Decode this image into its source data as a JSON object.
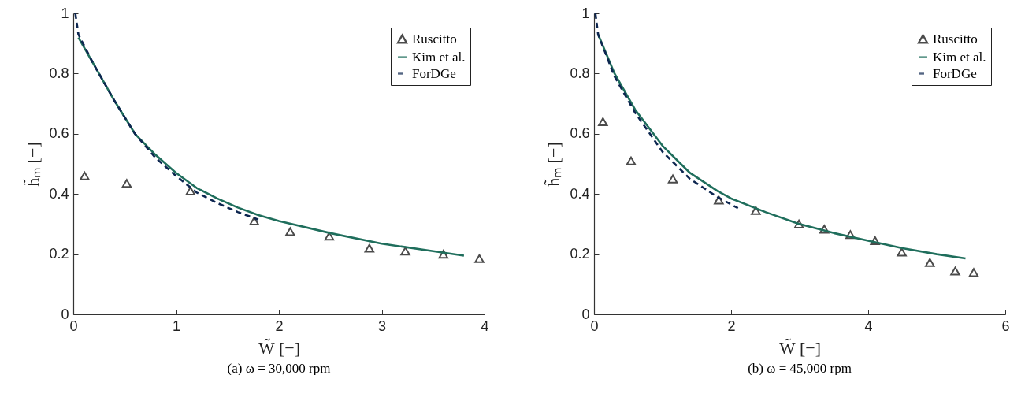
{
  "chart_data": [
    {
      "type": "line",
      "title": "(a)  ω = 30,000 rpm",
      "xlabel": "W̃  [−]",
      "ylabel": "h̃ₘ  [−]",
      "xlim": [
        0,
        4
      ],
      "xticks": [
        0,
        1,
        2,
        3,
        4
      ],
      "ylim": [
        0,
        1
      ],
      "yticks": [
        0,
        0.2,
        0.4,
        0.6,
        0.8,
        1
      ],
      "grid": false,
      "legend": "top right",
      "series": [
        {
          "name": "Ruscitto",
          "type": "scatter",
          "marker": "triangle",
          "color": "#000000",
          "x": [
            0.11,
            0.52,
            1.14,
            1.76,
            2.11,
            2.49,
            2.88,
            3.23,
            3.6,
            3.95
          ],
          "values": [
            0.46,
            0.435,
            0.41,
            0.31,
            0.275,
            0.26,
            0.22,
            0.21,
            0.2,
            0.185
          ]
        },
        {
          "name": "Kim et al.",
          "marker": "none",
          "line_style": "solid",
          "color": "#1f6e5c",
          "x": [
            0.05,
            0.2,
            0.4,
            0.6,
            0.8,
            1.0,
            1.2,
            1.4,
            1.6,
            1.8,
            2.0,
            2.5,
            3.0,
            3.5,
            3.8
          ],
          "values": [
            0.92,
            0.83,
            0.71,
            0.6,
            0.53,
            0.47,
            0.42,
            0.385,
            0.355,
            0.33,
            0.31,
            0.27,
            0.235,
            0.21,
            0.195
          ]
        },
        {
          "name": "ForDGe",
          "marker": "none",
          "line_style": "dashed",
          "color": "#0d2650",
          "x": [
            0.02,
            0.05,
            0.2,
            0.4,
            0.6,
            0.8,
            1.0,
            1.2,
            1.4,
            1.6,
            1.8
          ],
          "values": [
            1.0,
            0.93,
            0.83,
            0.71,
            0.6,
            0.52,
            0.46,
            0.405,
            0.37,
            0.34,
            0.315
          ]
        }
      ]
    },
    {
      "type": "line",
      "title": "(b)  ω = 45,000 rpm",
      "xlabel": "W̃  [−]",
      "ylabel": "h̃ₘ  [−]",
      "xlim": [
        0,
        6
      ],
      "xticks": [
        0,
        2,
        4,
        6
      ],
      "ylim": [
        0,
        1
      ],
      "yticks": [
        0,
        0.2,
        0.4,
        0.6,
        0.8,
        1
      ],
      "grid": false,
      "legend": "top right",
      "series": [
        {
          "name": "Ruscitto",
          "type": "scatter",
          "marker": "triangle",
          "color": "#000000",
          "x": [
            0.13,
            0.54,
            1.15,
            1.82,
            2.36,
            2.99,
            3.36,
            3.74,
            4.1,
            4.49,
            4.9,
            5.27,
            5.54
          ],
          "values": [
            0.64,
            0.51,
            0.45,
            0.38,
            0.345,
            0.3,
            0.283,
            0.265,
            0.245,
            0.207,
            0.172,
            0.144,
            0.139
          ]
        },
        {
          "name": "Kim et al.",
          "marker": "none",
          "line_style": "solid",
          "color": "#1f6e5c",
          "x": [
            0.06,
            0.3,
            0.6,
            1.0,
            1.4,
            1.8,
            2.0,
            2.5,
            3.0,
            3.5,
            4.0,
            4.5,
            5.0,
            5.42
          ],
          "values": [
            0.93,
            0.8,
            0.68,
            0.56,
            0.47,
            0.41,
            0.385,
            0.34,
            0.3,
            0.27,
            0.245,
            0.22,
            0.2,
            0.186
          ]
        },
        {
          "name": "ForDGe",
          "marker": "none",
          "line_style": "dashed",
          "color": "#0d2650",
          "x": [
            0.02,
            0.06,
            0.3,
            0.6,
            1.0,
            1.4,
            1.8,
            2.1
          ],
          "values": [
            1.0,
            0.93,
            0.79,
            0.67,
            0.54,
            0.45,
            0.39,
            0.353
          ]
        }
      ]
    }
  ]
}
